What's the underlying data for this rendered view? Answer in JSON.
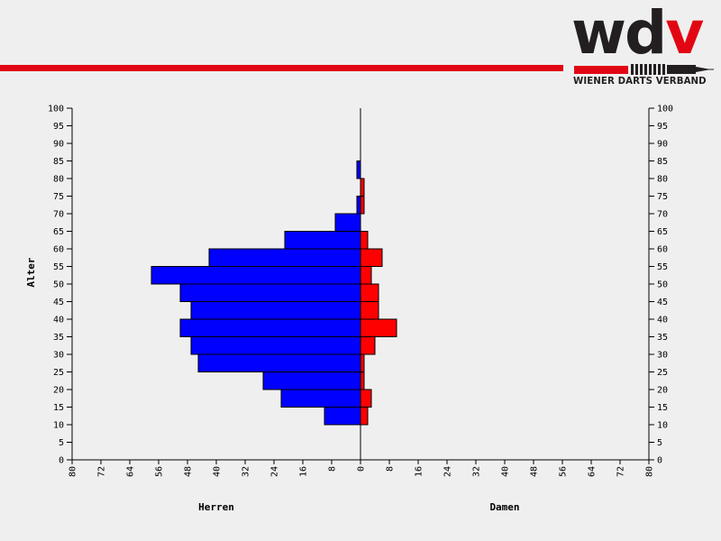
{
  "header": {
    "accent_color": "#e20613",
    "logo": {
      "text_main": "wd",
      "text_accent": "v",
      "subtitle": "WIENER DARTS VERBAND",
      "icon": "dart-icon"
    }
  },
  "chart_data": {
    "type": "bar",
    "orientation": "horizontal-population-pyramid",
    "ylabel": "Alter",
    "y_ticks": [
      0,
      5,
      10,
      15,
      20,
      25,
      30,
      35,
      40,
      45,
      50,
      55,
      60,
      65,
      70,
      75,
      80,
      85,
      90,
      95,
      100
    ],
    "ylim": [
      0,
      100
    ],
    "x_ticks_left": [
      80,
      72,
      64,
      56,
      48,
      40,
      32,
      24,
      16,
      8,
      0
    ],
    "x_ticks_right": [
      0,
      8,
      16,
      24,
      32,
      40,
      48,
      56,
      64,
      72,
      80
    ],
    "xlim": [
      0,
      80
    ],
    "bin_size": 5,
    "series": [
      {
        "name": "Herren",
        "color": "#0000ff",
        "side": "left",
        "bins": [
          {
            "from": 10,
            "value": 10
          },
          {
            "from": 15,
            "value": 22
          },
          {
            "from": 20,
            "value": 27
          },
          {
            "from": 25,
            "value": 45
          },
          {
            "from": 30,
            "value": 47
          },
          {
            "from": 35,
            "value": 50
          },
          {
            "from": 40,
            "value": 47
          },
          {
            "from": 45,
            "value": 50
          },
          {
            "from": 50,
            "value": 58
          },
          {
            "from": 55,
            "value": 42
          },
          {
            "from": 60,
            "value": 21
          },
          {
            "from": 65,
            "value": 7
          },
          {
            "from": 70,
            "value": 1
          },
          {
            "from": 80,
            "value": 1
          }
        ]
      },
      {
        "name": "Damen",
        "color": "#ff0000",
        "side": "right",
        "bins": [
          {
            "from": 10,
            "value": 2
          },
          {
            "from": 15,
            "value": 3
          },
          {
            "from": 20,
            "value": 1
          },
          {
            "from": 25,
            "value": 1
          },
          {
            "from": 30,
            "value": 4
          },
          {
            "from": 35,
            "value": 10
          },
          {
            "from": 40,
            "value": 5
          },
          {
            "from": 45,
            "value": 5
          },
          {
            "from": 50,
            "value": 3
          },
          {
            "from": 55,
            "value": 6
          },
          {
            "from": 60,
            "value": 2
          },
          {
            "from": 70,
            "value": 1
          },
          {
            "from": 75,
            "value": 1
          }
        ]
      }
    ],
    "grid": false
  }
}
